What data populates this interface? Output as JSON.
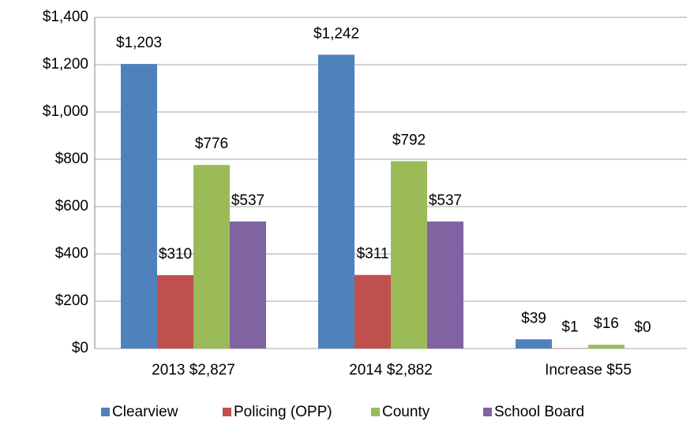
{
  "chart_data": {
    "type": "bar",
    "categories": [
      "2013 $2,827",
      "2014 $2,882",
      "Increase $55"
    ],
    "series": [
      {
        "name": "Clearview",
        "color": "#4f81bd",
        "values": [
          1203,
          1242,
          39
        ],
        "value_labels": [
          "$1,203",
          "$1,242",
          "$39"
        ]
      },
      {
        "name": "Policing (OPP)",
        "color": "#c0504d",
        "values": [
          310,
          311,
          1
        ],
        "value_labels": [
          "$310",
          "$311",
          "$1"
        ]
      },
      {
        "name": "County",
        "color": "#9bbb59",
        "values": [
          776,
          792,
          16
        ],
        "value_labels": [
          "$776",
          "$792",
          "$16"
        ]
      },
      {
        "name": "School Board",
        "color": "#8064a2",
        "values": [
          537,
          537,
          0
        ],
        "value_labels": [
          "$537",
          "$537",
          "$0"
        ]
      }
    ],
    "ylim": [
      0,
      1400
    ],
    "yticks": [
      {
        "value": 0,
        "label": "$0"
      },
      {
        "value": 200,
        "label": "$200"
      },
      {
        "value": 400,
        "label": "$400"
      },
      {
        "value": 600,
        "label": "$600"
      },
      {
        "value": 800,
        "label": "$800"
      },
      {
        "value": 1000,
        "label": "$1,000"
      },
      {
        "value": 1200,
        "label": "$1,200"
      },
      {
        "value": 1400,
        "label": "$1,400"
      }
    ],
    "grid": true,
    "legend": "bottom"
  }
}
